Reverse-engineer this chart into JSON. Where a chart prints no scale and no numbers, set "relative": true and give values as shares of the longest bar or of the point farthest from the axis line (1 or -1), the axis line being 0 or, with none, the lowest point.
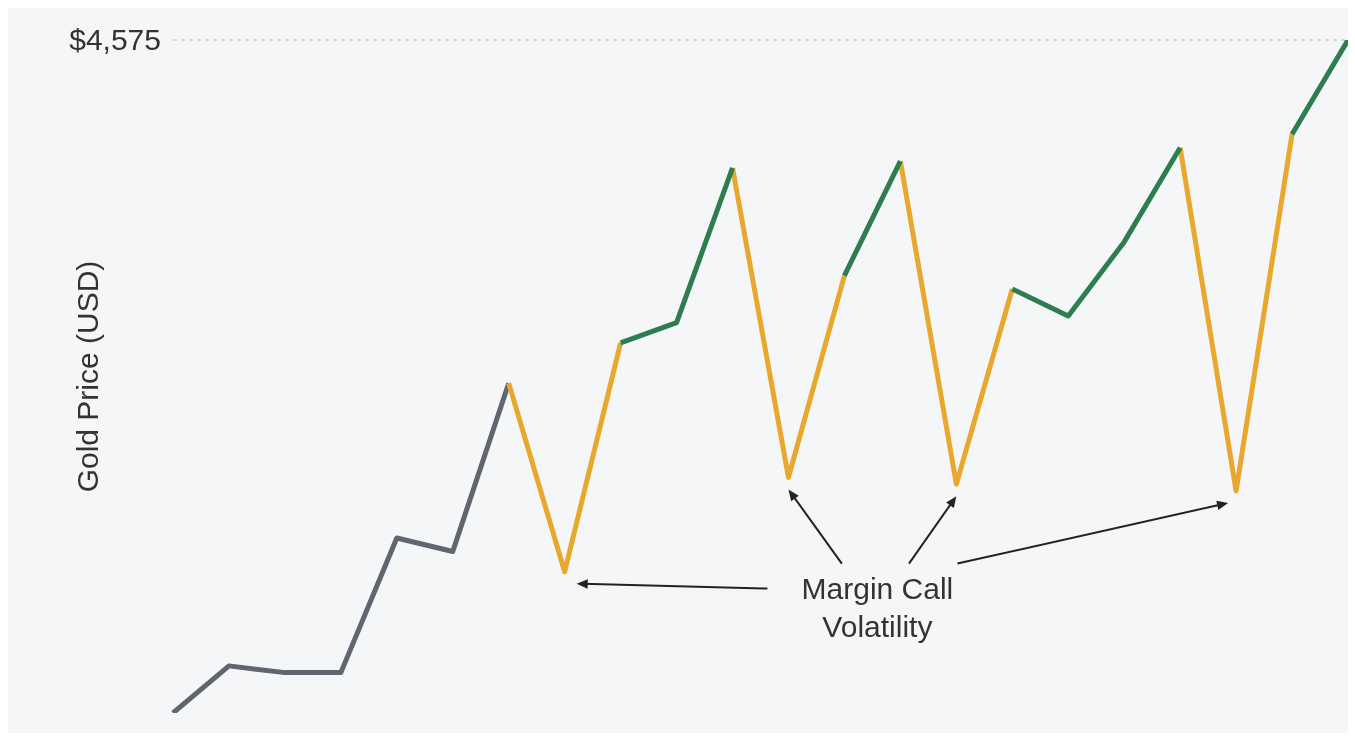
{
  "chart_data": {
    "type": "line",
    "relative": true,
    "ylabel": "Gold Price (USD)",
    "categories": [
      null,
      null,
      null,
      null,
      null,
      null,
      null,
      null,
      null,
      null,
      null,
      null,
      null,
      null,
      null,
      null,
      null,
      null,
      null,
      null,
      null,
      null
    ],
    "series": [
      {
        "color": "#5f6670",
        "values": [
          0,
          0.07,
          0.06,
          0.06,
          0.26,
          0.24,
          0.49,
          null,
          null,
          null,
          null,
          null,
          null,
          null,
          null,
          null,
          null,
          null,
          null,
          null,
          null,
          null
        ]
      },
      {
        "color": "#e8a82e",
        "values": [
          null,
          null,
          null,
          null,
          null,
          null,
          0.49,
          0.21,
          0.55,
          null,
          null,
          null,
          null,
          0.82,
          0.34,
          0.63,
          null,
          null,
          null,
          null,
          null,
          null
        ]
      },
      {
        "color": "#e8a82e",
        "values": [
          null,
          null,
          null,
          null,
          null,
          null,
          null,
          null,
          null,
          null,
          0.81,
          0.35,
          0.65,
          null,
          null,
          null,
          null,
          null,
          0.84,
          0.33,
          0.86,
          null
        ]
      },
      {
        "color": "#2e7d4f",
        "values": [
          null,
          null,
          null,
          null,
          null,
          null,
          null,
          null,
          0.55,
          0.58,
          0.81,
          null,
          0.65,
          0.82,
          null,
          0.63,
          0.59,
          0.7,
          0.84,
          null,
          0.86,
          1
        ]
      }
    ],
    "ref_lines": [
      {
        "axis": "y",
        "value": 1,
        "line_style": "dashed",
        "color": "#bbbbbb"
      }
    ],
    "annotations": [
      "Margin Call Volatility",
      "$4,575"
    ]
  }
}
